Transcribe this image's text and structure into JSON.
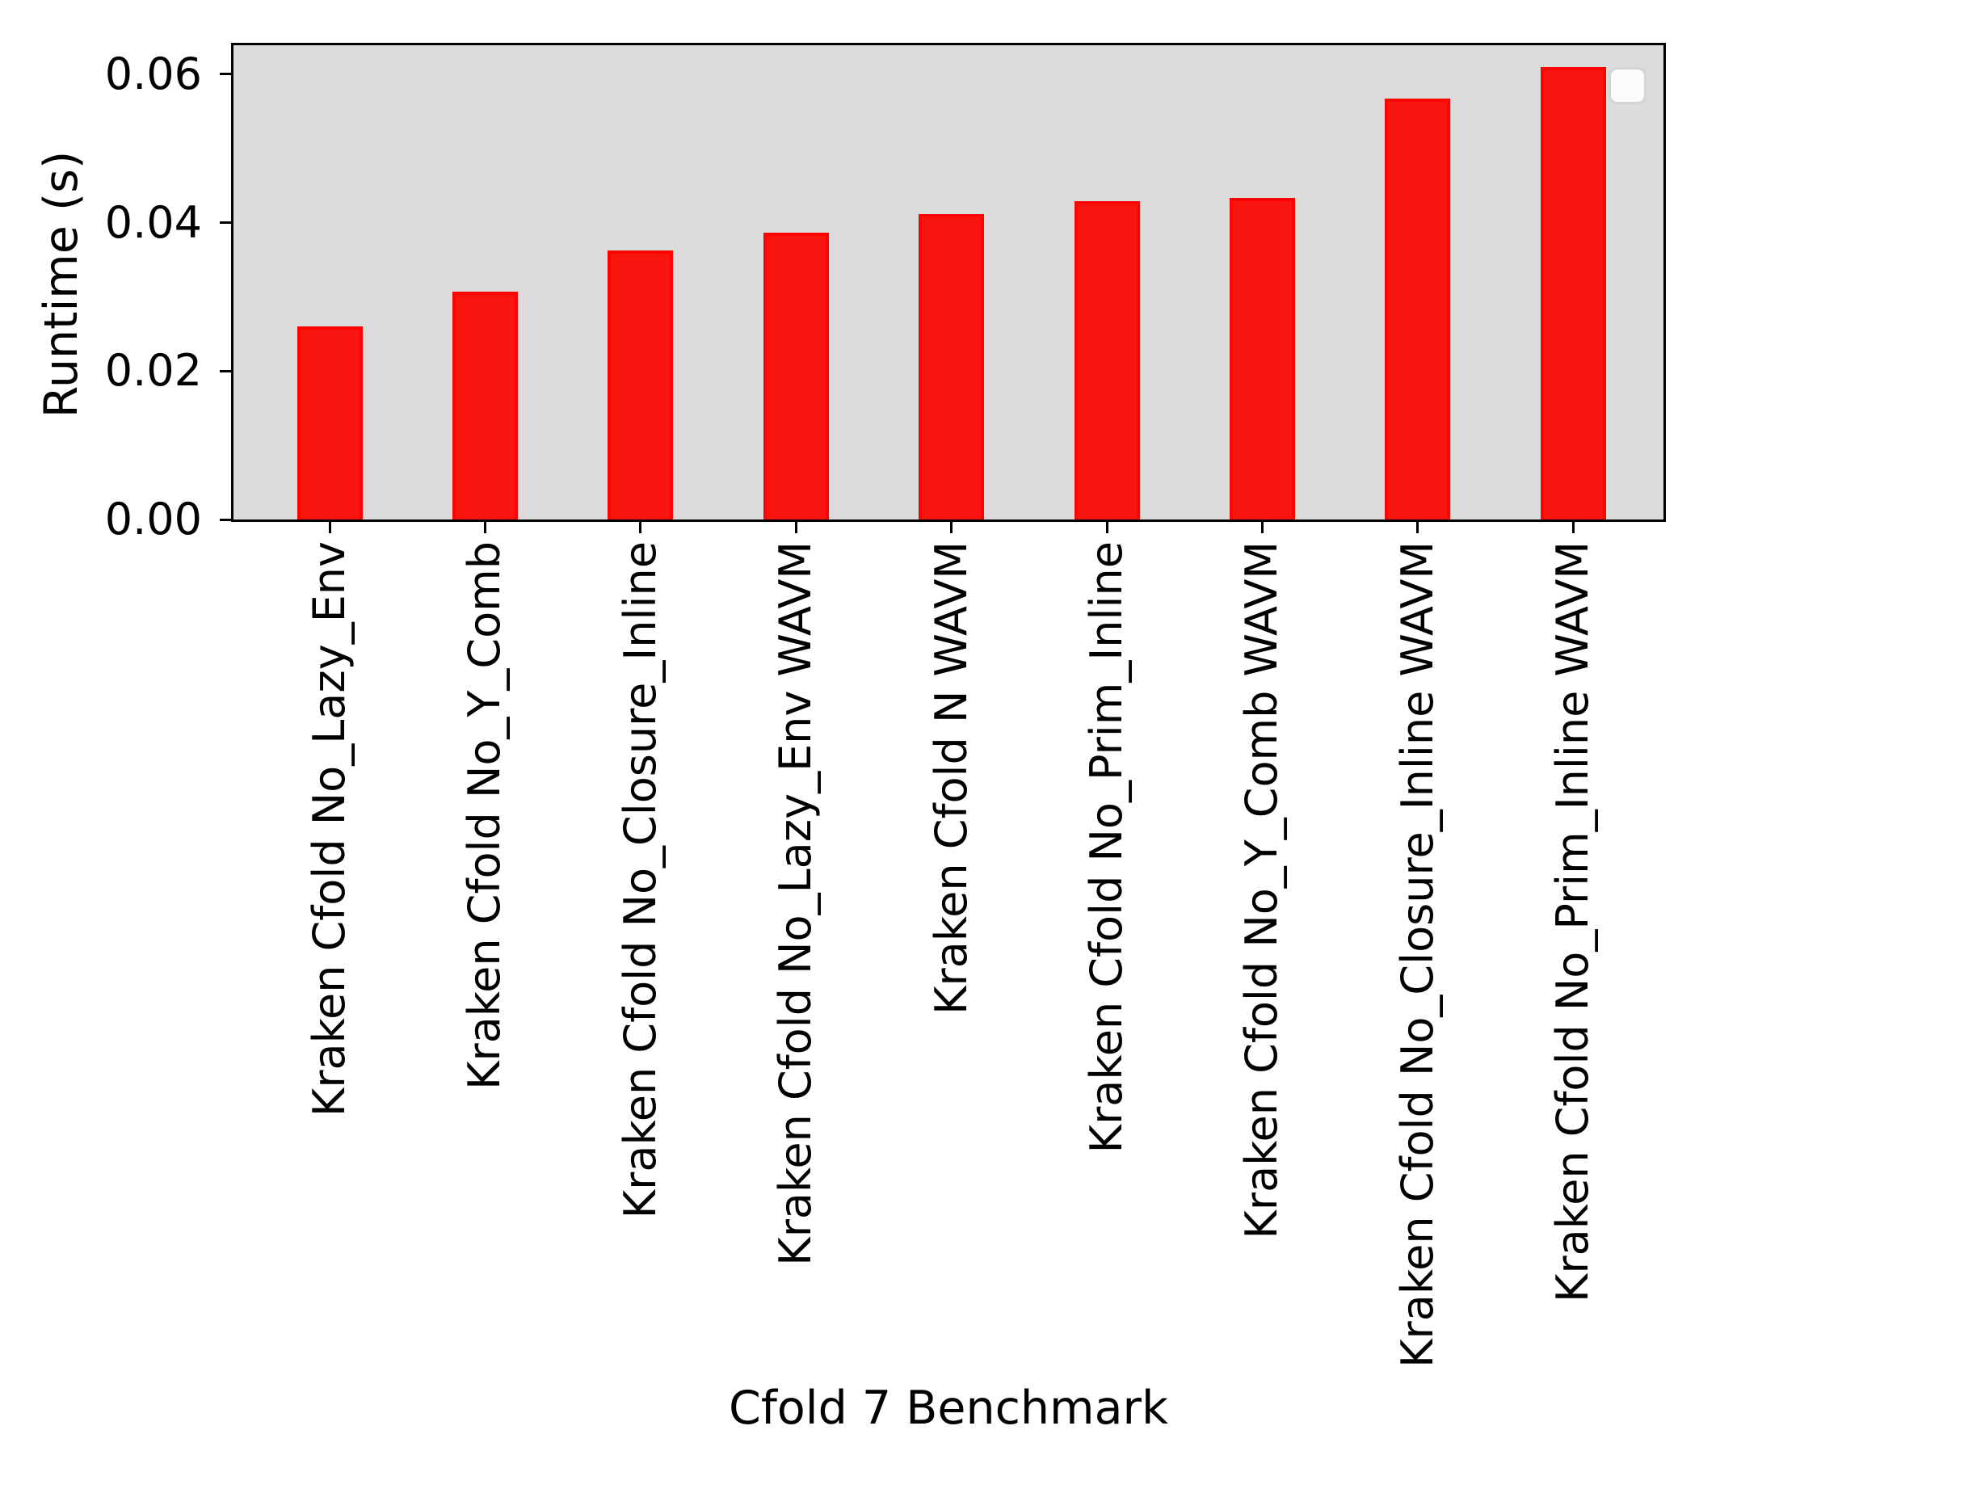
{
  "figure": {
    "background_color": "#ffffff",
    "plot_background_color": "#dcdcdc",
    "spine_color": "#000000",
    "bar_fill_color": "#f81510",
    "bar_edge_color": "#fe0400",
    "legend": {
      "visible": true,
      "entries": [],
      "position": "upper right",
      "background_color": "#fcfcfc",
      "border_color": "#d4d4d4"
    }
  },
  "chart_data": {
    "type": "bar",
    "title": "",
    "xlabel": "Cfold 7 Benchmark",
    "ylabel": "Runtime (s)",
    "categories": [
      "Kraken Cfold No_Lazy_Env",
      "Kraken Cfold No_Y_Comb",
      "Kraken Cfold No_Closure_Inline",
      "Kraken Cfold No_Lazy_Env WAVM",
      "Kraken Cfold N WAVM",
      "Kraken Cfold No_Prim_Inline",
      "Kraken Cfold No_Y_Comb WAVM",
      "Kraken Cfold No_Closure_Inline WAVM",
      "Kraken Cfold No_Prim_Inline WAVM"
    ],
    "values": [
      0.026,
      0.0307,
      0.0363,
      0.0386,
      0.0411,
      0.0429,
      0.0433,
      0.0567,
      0.061
    ],
    "bar_color": "red",
    "yticks": [
      0.0,
      0.02,
      0.04,
      0.06
    ],
    "ytick_labels": [
      "0.00",
      "0.02",
      "0.04",
      "0.06"
    ],
    "ylim": [
      0.0,
      0.0639
    ],
    "grid": false,
    "legend_position": "upper right"
  }
}
